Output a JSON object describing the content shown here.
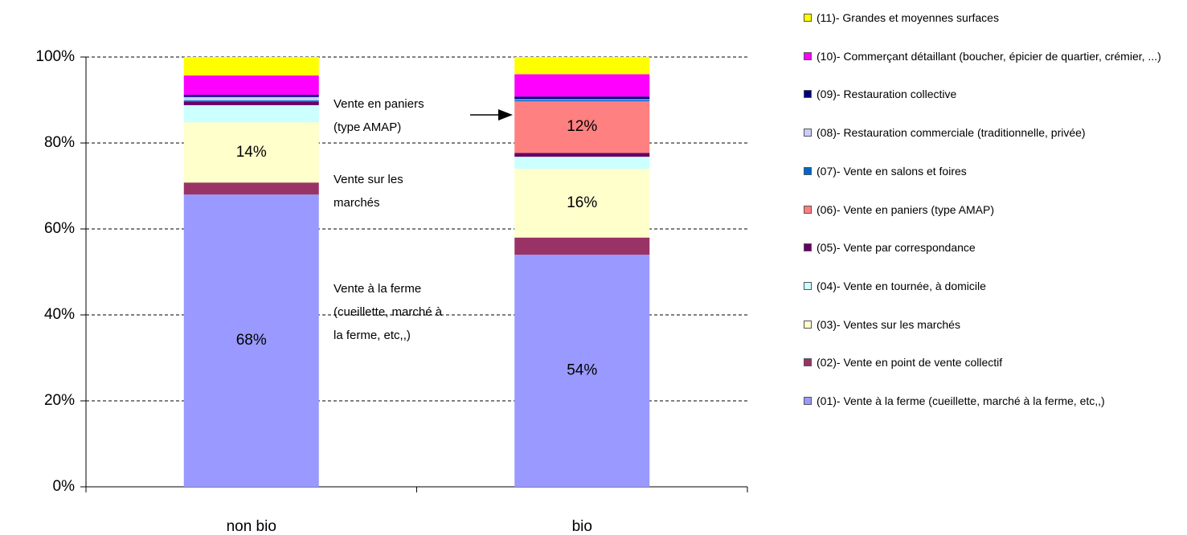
{
  "chart_data": {
    "type": "stacked_bar",
    "categories": [
      "non bio",
      "bio"
    ],
    "series": [
      {
        "name": "(01)- Vente à la ferme (cueillette, marché à la ferme, etc,,)",
        "color": "#9999ff",
        "values": [
          68,
          54
        ],
        "value_labels": [
          "68%",
          "54%"
        ]
      },
      {
        "name": "(02)- Vente en point de vente collectif",
        "color": "#993366",
        "values": [
          2.8,
          4
        ]
      },
      {
        "name": "(03)- Ventes sur les marchés",
        "color": "#ffffcc",
        "values": [
          14,
          16
        ],
        "value_labels": [
          "14%",
          "16%"
        ]
      },
      {
        "name": "(04)- Vente en tournée, à domicile",
        "color": "#ccffff",
        "values": [
          4,
          2.8
        ]
      },
      {
        "name": "(05)- Vente par correspondance",
        "color": "#660066",
        "values": [
          0.8,
          0.9
        ]
      },
      {
        "name": "(06)- Vente en paniers (type AMAP)",
        "color": "#ff8080",
        "values": [
          0,
          12
        ],
        "value_labels": [
          null,
          "12%"
        ]
      },
      {
        "name": "(07)- Vente en salons et foires",
        "color": "#0066cc",
        "values": [
          0.3,
          0.3
        ]
      },
      {
        "name": "(08)- Restauration commerciale (traditionnelle, privée)",
        "color": "#ccccff",
        "values": [
          0.8,
          0.2
        ]
      },
      {
        "name": "(09)- Restauration collective",
        "color": "#000080",
        "values": [
          0.5,
          0.6
        ]
      },
      {
        "name": "(10)- Commerçant détaillant (boucher, épicier de quartier, crémier, ...)",
        "color": "#ff00ff",
        "values": [
          4.5,
          5.2
        ]
      },
      {
        "name": "(11)- Grandes et moyennes surfaces",
        "color": "#ffff00",
        "values": [
          4.3,
          4.0
        ]
      }
    ],
    "annotations": [
      {
        "lines": [
          "Vente en paniers",
          "(type AMAP)"
        ]
      },
      {
        "lines": [
          "Vente sur les",
          "marchés"
        ]
      },
      {
        "lines": [
          "Vente à la ferme",
          "(cueillette, marché à",
          "la ferme, etc,,)"
        ]
      }
    ],
    "ylim": [
      0,
      100
    ],
    "yticks": [
      {
        "value": 0,
        "label": "0%"
      },
      {
        "value": 20,
        "label": "20%"
      },
      {
        "value": 40,
        "label": "40%"
      },
      {
        "value": 60,
        "label": "60%"
      },
      {
        "value": 80,
        "label": "80%"
      },
      {
        "value": 100,
        "label": "100%"
      }
    ],
    "grid": true,
    "legend": "right"
  }
}
